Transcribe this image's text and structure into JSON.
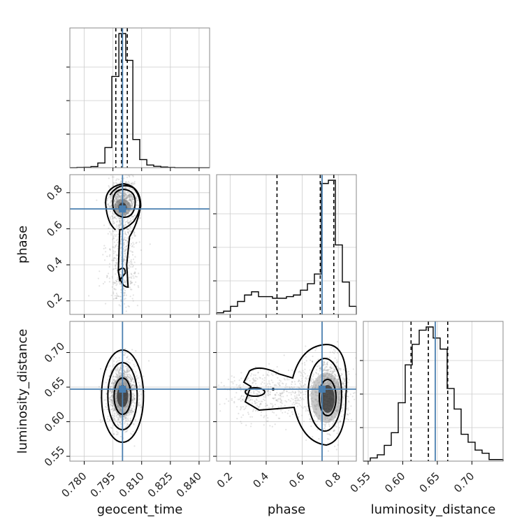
{
  "chart_data": {
    "type": "corner",
    "parameters": [
      "geocent_time",
      "phase",
      "luminosity_distance"
    ],
    "truths": {
      "geocent_time": 0.8,
      "phase": 0.71,
      "luminosity_distance": 0.647
    },
    "ranges": {
      "geocent_time": [
        0.7725,
        0.8455
      ],
      "phase": [
        0.125,
        0.9
      ],
      "luminosity_distance": [
        0.543,
        0.745
      ]
    },
    "ticks": {
      "geocent_time": {
        "values": [
          0.78,
          0.795,
          0.81,
          0.825,
          0.84
        ],
        "labels": [
          "0.780",
          "0.795",
          "0.810",
          "0.825",
          "0.840"
        ]
      },
      "phase": {
        "values": [
          0.2,
          0.4,
          0.6,
          0.8
        ],
        "labels": [
          "0.2",
          "0.4",
          "0.6",
          "0.8"
        ]
      },
      "luminosity_distance": {
        "values": [
          0.55,
          0.6,
          0.65,
          0.7
        ],
        "labels": [
          "0.55",
          "0.60",
          "0.65",
          "0.70"
        ]
      }
    },
    "quantiles": {
      "geocent_time": [
        0.7965,
        0.7995,
        0.8025
      ],
      "phase": [
        0.46,
        0.7,
        0.775
      ],
      "luminosity_distance": [
        0.612,
        0.637,
        0.665
      ]
    },
    "histograms": {
      "geocent_time": {
        "edges": [
          0.7725,
          0.7762,
          0.7798,
          0.7835,
          0.7871,
          0.7908,
          0.7944,
          0.7981,
          0.8017,
          0.8054,
          0.809,
          0.8127,
          0.8163,
          0.82,
          0.8236,
          0.8273,
          0.8309,
          0.8346,
          0.8382,
          0.8419,
          0.8455
        ],
        "counts": [
          0,
          0.2,
          0.3,
          0.8,
          3.5,
          15,
          68,
          100,
          80,
          21,
          6,
          2,
          1,
          0.5,
          0.2,
          0,
          0,
          0,
          0,
          0
        ]
      },
      "phase": {
        "edges": [
          0.125,
          0.1638,
          0.2025,
          0.2413,
          0.28,
          0.3188,
          0.3575,
          0.3963,
          0.435,
          0.4738,
          0.5125,
          0.5513,
          0.59,
          0.6288,
          0.6675,
          0.7063,
          0.745,
          0.7838,
          0.8225,
          0.8613,
          0.9
        ],
        "counts": [
          1,
          2,
          5,
          8,
          12,
          14,
          11,
          11,
          10,
          10,
          11,
          12,
          15,
          19,
          25,
          81,
          83,
          43,
          20,
          5
        ]
      },
      "luminosity_distance": {
        "edges": [
          0.543,
          0.5531,
          0.5632,
          0.5733,
          0.5834,
          0.5935,
          0.6036,
          0.6137,
          0.6238,
          0.6339,
          0.644,
          0.6541,
          0.6642,
          0.6743,
          0.6844,
          0.6945,
          0.7046,
          0.7147,
          0.7248,
          0.7349,
          0.745
        ],
        "counts": [
          0,
          2,
          4,
          10,
          18,
          37,
          61,
          74,
          83,
          85,
          78,
          71,
          46,
          33,
          17,
          12,
          7,
          5,
          1,
          1
        ]
      }
    },
    "contour_pairs": [
      "phase|geocent_time",
      "luminosity_distance|geocent_time",
      "luminosity_distance|phase"
    ]
  }
}
